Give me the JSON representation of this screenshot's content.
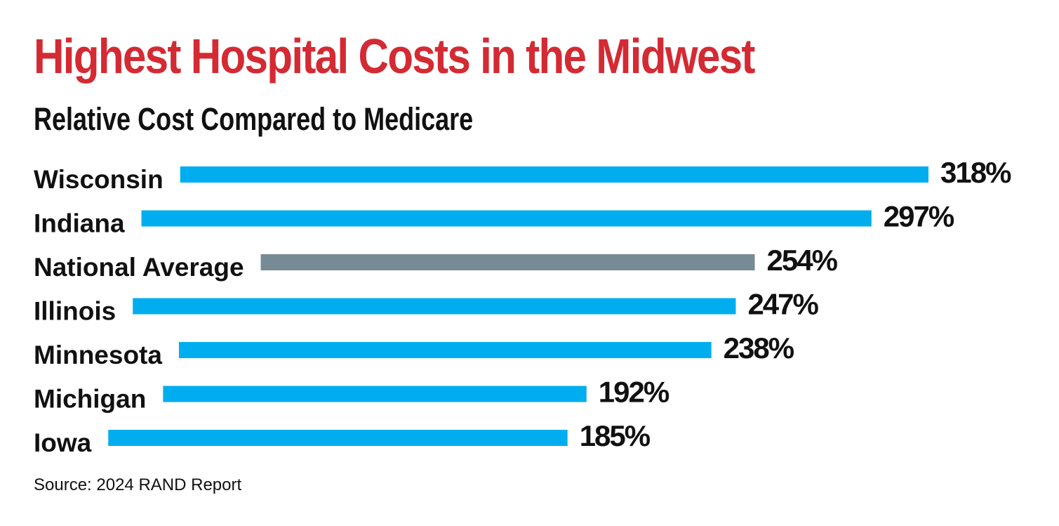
{
  "colors": {
    "title": "#d42a33",
    "bar_state": "#00aeef",
    "bar_national": "#778b96",
    "text": "#111111"
  },
  "chart_data": {
    "type": "bar",
    "orientation": "horizontal",
    "title": "Highest Hospital Costs in the Midwest",
    "subtitle": "Relative Cost Compared to Medicare",
    "unit": "%",
    "categories": [
      "Wisconsin",
      "Indiana",
      "National Average",
      "Illinois",
      "Minnesota",
      "Michigan",
      "Iowa"
    ],
    "values": [
      318,
      297,
      254,
      247,
      238,
      192,
      185
    ],
    "value_labels": [
      "318%",
      "297%",
      "254%",
      "247%",
      "238%",
      "192%",
      "185%"
    ],
    "highlight_category": "National Average",
    "grid": false,
    "legend": "none"
  },
  "source": "Source: 2024 RAND Report"
}
